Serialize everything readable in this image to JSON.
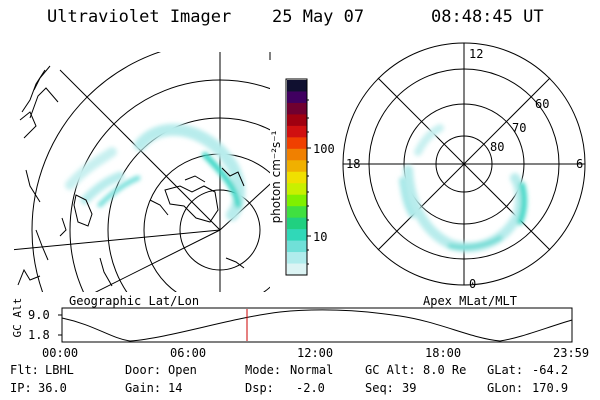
{
  "header": {
    "instrument": "Ultraviolet Imager",
    "date": "25 May 07",
    "time": "08:48:45 UT"
  },
  "left_map": {
    "label": "Geographic Lat/Lon"
  },
  "right_map": {
    "label": "Apex MLat/MLT",
    "mlt_labels": [
      "12",
      "18",
      "6",
      "0"
    ],
    "mlat_labels": [
      "60",
      "70",
      "80"
    ]
  },
  "colorbar": {
    "unit_label": "photon cm⁻²s⁻¹",
    "tick_labels": [
      "100",
      "10"
    ],
    "colors": [
      "#101030",
      "#400060",
      "#700030",
      "#a00010",
      "#d01010",
      "#f04000",
      "#f08000",
      "#f0b000",
      "#f0e000",
      "#c8f000",
      "#80f000",
      "#40e040",
      "#20d080",
      "#30d8b8",
      "#70e0d8",
      "#b0ecec",
      "#dcf4f4"
    ]
  },
  "timeline": {
    "ylabel": "GC Alt",
    "y_ticks": [
      "9.0",
      "1.8"
    ],
    "x_ticks": [
      "00:00",
      "06:00",
      "12:00",
      "18:00",
      "23:59"
    ],
    "marker_color": "#cc0000"
  },
  "status": {
    "row1": [
      {
        "label": "Flt:",
        "value": "LBHL"
      },
      {
        "label": "Door:",
        "value": "Open"
      },
      {
        "label": "Mode:",
        "value": "Normal"
      },
      {
        "label": "GC Alt:",
        "value": "8.0 Re"
      },
      {
        "label": "GLat:",
        "value": "-64.2"
      }
    ],
    "row2": [
      {
        "label": "IP:",
        "value": "36.0"
      },
      {
        "label": "Gain:",
        "value": "14"
      },
      {
        "label": "Dsp:",
        "value": "-2.0"
      },
      {
        "label": "Seq:",
        "value": "39"
      },
      {
        "label": "GLon:",
        "value": "170.9"
      }
    ]
  }
}
